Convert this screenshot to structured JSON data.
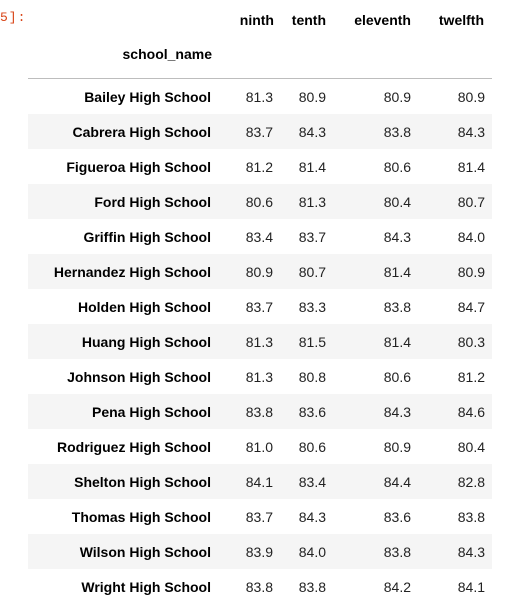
{
  "prompt": "5]:",
  "table": {
    "columns": [
      "ninth",
      "tenth",
      "eleventh",
      "twelfth"
    ],
    "index_name": "school_name",
    "rows": [
      {
        "school": "Bailey High School",
        "values": [
          "81.3",
          "80.9",
          "80.9",
          "80.9"
        ]
      },
      {
        "school": "Cabrera High School",
        "values": [
          "83.7",
          "84.3",
          "83.8",
          "84.3"
        ]
      },
      {
        "school": "Figueroa High School",
        "values": [
          "81.2",
          "81.4",
          "80.6",
          "81.4"
        ]
      },
      {
        "school": "Ford High School",
        "values": [
          "80.6",
          "81.3",
          "80.4",
          "80.7"
        ]
      },
      {
        "school": "Griffin High School",
        "values": [
          "83.4",
          "83.7",
          "84.3",
          "84.0"
        ]
      },
      {
        "school": "Hernandez High School",
        "values": [
          "80.9",
          "80.7",
          "81.4",
          "80.9"
        ]
      },
      {
        "school": "Holden High School",
        "values": [
          "83.7",
          "83.3",
          "83.8",
          "84.7"
        ]
      },
      {
        "school": "Huang High School",
        "values": [
          "81.3",
          "81.5",
          "81.4",
          "80.3"
        ]
      },
      {
        "school": "Johnson High School",
        "values": [
          "81.3",
          "80.8",
          "80.6",
          "81.2"
        ]
      },
      {
        "school": "Pena High School",
        "values": [
          "83.8",
          "83.6",
          "84.3",
          "84.6"
        ]
      },
      {
        "school": "Rodriguez High School",
        "values": [
          "81.0",
          "80.6",
          "80.9",
          "80.4"
        ]
      },
      {
        "school": "Shelton High School",
        "values": [
          "84.1",
          "83.4",
          "84.4",
          "82.8"
        ]
      },
      {
        "school": "Thomas High School",
        "values": [
          "83.7",
          "84.3",
          "83.6",
          "83.8"
        ]
      },
      {
        "school": "Wilson High School",
        "values": [
          "83.9",
          "84.0",
          "83.8",
          "84.3"
        ]
      },
      {
        "school": "Wright High School",
        "values": [
          "83.8",
          "83.8",
          "84.2",
          "84.1"
        ]
      }
    ]
  }
}
